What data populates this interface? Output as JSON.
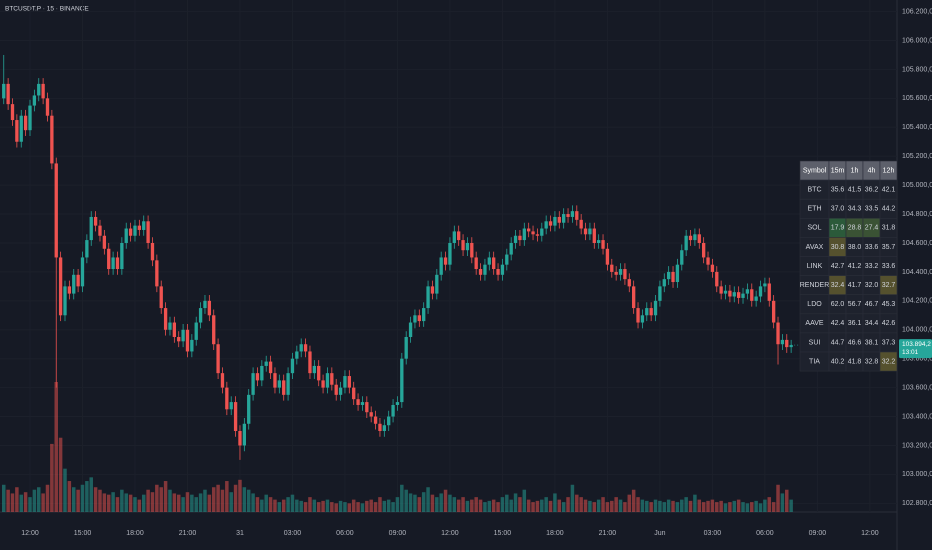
{
  "chart_data": {
    "type": "candlestick",
    "title": "BTCUSDT.P · 15 · BINANCE",
    "up_color": "#26a69a",
    "down_color": "#ef5350",
    "grid": true,
    "xlim": [
      -0.857,
      204.2
    ],
    "xticks": [
      {
        "value": 6,
        "label": "12:00"
      },
      {
        "value": 18,
        "label": "15:00"
      },
      {
        "value": 30,
        "label": "18:00"
      },
      {
        "value": 42,
        "label": "21:00"
      },
      {
        "value": 54,
        "label": "31"
      },
      {
        "value": 66,
        "label": "03:00"
      },
      {
        "value": 78,
        "label": "06:00"
      },
      {
        "value": 90,
        "label": "09:00"
      },
      {
        "value": 102,
        "label": "12:00"
      },
      {
        "value": 114,
        "label": "15:00"
      },
      {
        "value": 126,
        "label": "18:00"
      },
      {
        "value": 138,
        "label": "21:00"
      },
      {
        "value": 150,
        "label": "Jun"
      },
      {
        "value": 162,
        "label": "03:00"
      },
      {
        "value": 174,
        "label": "06:00"
      },
      {
        "value": 186,
        "label": "09:00"
      },
      {
        "value": 198,
        "label": "12:00"
      }
    ],
    "ylim": [
      102740,
      106280
    ],
    "yticks": [
      {
        "value": 106200,
        "label": "106.200,0"
      },
      {
        "value": 106000,
        "label": "106.000,0"
      },
      {
        "value": 105800,
        "label": "105.800,0"
      },
      {
        "value": 105600,
        "label": "105.600,0"
      },
      {
        "value": 105400,
        "label": "105.400,0"
      },
      {
        "value": 105200,
        "label": "105.200,0"
      },
      {
        "value": 105000,
        "label": "105.000,0"
      },
      {
        "value": 104800,
        "label": "104.800,0"
      },
      {
        "value": 104600,
        "label": "104.600,0"
      },
      {
        "value": 104400,
        "label": "104.400,0"
      },
      {
        "value": 104200,
        "label": "104.200,0"
      },
      {
        "value": 104000,
        "label": "104.000,0"
      },
      {
        "value": 103800,
        "label": "103.800,0"
      },
      {
        "value": 103600,
        "label": "103.600,0"
      },
      {
        "value": 103400,
        "label": "103.400,0"
      },
      {
        "value": 103200,
        "label": "103.200,0"
      },
      {
        "value": 103000,
        "label": "103.000,0"
      },
      {
        "value": 102800,
        "label": "102.800,0"
      }
    ],
    "open": [
      105600,
      105700,
      105560,
      105450,
      105300,
      105480,
      105380,
      105550,
      105620,
      105700,
      105600,
      105480,
      105150,
      104500,
      104100,
      104300,
      104250,
      104380,
      104300,
      104500,
      104620,
      104780,
      104720,
      104650,
      104560,
      104420,
      104500,
      104420,
      104600,
      104700,
      104650,
      104720,
      104690,
      104750,
      104600,
      104480,
      104300,
      104150,
      104000,
      104050,
      103950,
      103920,
      104000,
      103850,
      103930,
      104050,
      104150,
      104200,
      104100,
      103900,
      103700,
      103600,
      103450,
      103500,
      103300,
      103200,
      103350,
      103550,
      103700,
      103650,
      103750,
      103780,
      103700,
      103600,
      103650,
      103550,
      103700,
      103800,
      103850,
      103900,
      103850,
      103700,
      103750,
      103650,
      103600,
      103700,
      103620,
      103550,
      103600,
      103680,
      103600,
      103520,
      103480,
      103500,
      103430,
      103400,
      103350,
      103300,
      103340,
      103400,
      103480,
      103500,
      103800,
      103950,
      104050,
      104100,
      104060,
      104150,
      104300,
      104250,
      104380,
      104500,
      104450,
      104600,
      104680,
      104620,
      104550,
      104600,
      104500,
      104420,
      104380,
      104450,
      104500,
      104420,
      104380,
      104450,
      104520,
      104600,
      104650,
      104620,
      104700,
      104680,
      104660,
      104650,
      104700,
      104750,
      104720,
      104780,
      104740,
      104800,
      104780,
      104820,
      104760,
      104700,
      104660,
      104700,
      104600,
      104620,
      104560,
      104450,
      104400,
      104380,
      104420,
      104350,
      104300,
      104150,
      104050,
      104100,
      104150,
      104100,
      104200,
      104300,
      104350,
      104400,
      104330,
      104450,
      104550,
      104650,
      104620,
      104660,
      104600,
      104500,
      104450,
      104400,
      104300,
      104250,
      104270,
      104230,
      104260,
      104220,
      104250,
      104280,
      104200,
      104230,
      104300,
      104320,
      104200,
      104050,
      103900,
      103930,
      103880
    ],
    "high": [
      105900,
      105740,
      105600,
      105490,
      105520,
      105520,
      105590,
      105660,
      105740,
      105740,
      105640,
      105520,
      105190,
      104540,
      104340,
      104340,
      104420,
      104420,
      104540,
      104660,
      104820,
      104820,
      104760,
      104690,
      104600,
      104540,
      104540,
      104640,
      104740,
      104740,
      104760,
      104760,
      104790,
      104790,
      104640,
      104520,
      104340,
      104190,
      104090,
      104090,
      103990,
      104040,
      104040,
      103970,
      104090,
      104190,
      104240,
      104240,
      104140,
      103940,
      103740,
      103640,
      103540,
      103540,
      103340,
      103390,
      103590,
      103740,
      103740,
      103790,
      103820,
      103820,
      103740,
      103690,
      103690,
      103740,
      103840,
      103890,
      103940,
      103940,
      103890,
      103790,
      103790,
      103690,
      103740,
      103740,
      103660,
      103640,
      103720,
      103720,
      103640,
      103560,
      103540,
      103540,
      103470,
      103440,
      103390,
      103380,
      103440,
      103520,
      103540,
      103840,
      103990,
      104090,
      104140,
      104140,
      104190,
      104340,
      104340,
      104420,
      104540,
      104540,
      104640,
      104720,
      104720,
      104660,
      104640,
      104640,
      104540,
      104460,
      104490,
      104540,
      104540,
      104460,
      104490,
      104560,
      104640,
      104690,
      104690,
      104740,
      104740,
      104720,
      104700,
      104740,
      104790,
      104790,
      104820,
      104820,
      104840,
      104840,
      104860,
      104860,
      104800,
      104740,
      104740,
      104740,
      104660,
      104660,
      104600,
      104490,
      104440,
      104460,
      104460,
      104390,
      104340,
      104190,
      104140,
      104190,
      104190,
      104240,
      104340,
      104390,
      104440,
      104440,
      104490,
      104590,
      104690,
      104690,
      104700,
      104700,
      104640,
      104540,
      104490,
      104440,
      104340,
      104310,
      104310,
      104300,
      104300,
      104290,
      104320,
      104320,
      104270,
      104340,
      104360,
      104360,
      104240,
      104090,
      103970,
      103970,
      103930
    ],
    "low": [
      105560,
      105520,
      105410,
      105260,
      105260,
      105340,
      105340,
      105510,
      105580,
      105560,
      105440,
      105110,
      103600,
      104060,
      104060,
      104210,
      104210,
      104260,
      104260,
      104460,
      104580,
      104680,
      104610,
      104520,
      104380,
      104380,
      104380,
      104380,
      104560,
      104610,
      104610,
      104650,
      104650,
      104560,
      104440,
      104260,
      104110,
      103960,
      103960,
      103910,
      103880,
      103880,
      103810,
      103810,
      103890,
      104010,
      104110,
      104060,
      103860,
      103660,
      103560,
      103410,
      103410,
      103260,
      103100,
      103160,
      103310,
      103510,
      103610,
      103610,
      103710,
      103660,
      103560,
      103560,
      103510,
      103510,
      103660,
      103760,
      103810,
      103810,
      103660,
      103660,
      103610,
      103560,
      103560,
      103580,
      103510,
      103510,
      103560,
      103560,
      103480,
      103440,
      103440,
      103390,
      103360,
      103310,
      103260,
      103260,
      103300,
      103360,
      103440,
      103460,
      103760,
      103910,
      104010,
      104020,
      104020,
      104110,
      104210,
      104210,
      104340,
      104410,
      104410,
      104560,
      104580,
      104510,
      104510,
      104460,
      104380,
      104340,
      104340,
      104410,
      104380,
      104340,
      104340,
      104410,
      104480,
      104560,
      104580,
      104580,
      104640,
      104620,
      104610,
      104610,
      104660,
      104680,
      104680,
      104700,
      104700,
      104740,
      104740,
      104720,
      104660,
      104620,
      104620,
      104560,
      104560,
      104520,
      104410,
      104360,
      104340,
      104340,
      104310,
      104260,
      104110,
      104010,
      104010,
      104060,
      104060,
      104060,
      104160,
      104260,
      104310,
      104290,
      104290,
      104410,
      104510,
      104580,
      104580,
      104560,
      104460,
      104410,
      104360,
      104260,
      104210,
      104210,
      104190,
      104190,
      104180,
      104180,
      104210,
      104160,
      104160,
      104190,
      104260,
      104160,
      104010,
      103760,
      103860,
      103840,
      103840
    ],
    "close": [
      105700,
      105560,
      105450,
      105300,
      105480,
      105380,
      105550,
      105620,
      105700,
      105600,
      105480,
      105150,
      104500,
      104100,
      104300,
      104250,
      104380,
      104300,
      104500,
      104620,
      104780,
      104720,
      104650,
      104560,
      104420,
      104500,
      104420,
      104600,
      104700,
      104650,
      104720,
      104690,
      104750,
      104600,
      104480,
      104300,
      104150,
      104000,
      104050,
      103950,
      103920,
      104000,
      103850,
      103930,
      104050,
      104150,
      104200,
      104100,
      103900,
      103700,
      103600,
      103450,
      103500,
      103300,
      103200,
      103350,
      103550,
      103700,
      103650,
      103750,
      103780,
      103700,
      103600,
      103650,
      103550,
      103700,
      103800,
      103850,
      103900,
      103850,
      103700,
      103750,
      103650,
      103600,
      103700,
      103620,
      103550,
      103600,
      103680,
      103600,
      103520,
      103480,
      103500,
      103430,
      103400,
      103350,
      103300,
      103340,
      103400,
      103480,
      103500,
      103800,
      103950,
      104050,
      104100,
      104060,
      104150,
      104300,
      104250,
      104380,
      104500,
      104450,
      104600,
      104680,
      104620,
      104550,
      104600,
      104500,
      104420,
      104380,
      104450,
      104500,
      104420,
      104380,
      104450,
      104520,
      104600,
      104650,
      104620,
      104700,
      104680,
      104660,
      104650,
      104700,
      104750,
      104720,
      104780,
      104740,
      104800,
      104780,
      104820,
      104760,
      104700,
      104660,
      104700,
      104600,
      104620,
      104560,
      104450,
      104400,
      104380,
      104420,
      104350,
      104300,
      104150,
      104050,
      104100,
      104150,
      104100,
      104200,
      104300,
      104350,
      104400,
      104330,
      104450,
      104550,
      104650,
      104620,
      104660,
      104600,
      104500,
      104450,
      104400,
      104300,
      104250,
      104270,
      104230,
      104260,
      104220,
      104250,
      104280,
      104200,
      104230,
      104300,
      104320,
      104200,
      104050,
      103900,
      103930,
      103880,
      103894.2
    ],
    "volume": [
      22,
      18,
      15,
      20,
      14,
      16,
      12,
      18,
      20,
      15,
      22,
      55,
      105,
      60,
      35,
      25,
      20,
      18,
      22,
      25,
      28,
      20,
      18,
      15,
      14,
      16,
      12,
      18,
      15,
      14,
      12,
      10,
      14,
      18,
      16,
      22,
      20,
      25,
      18,
      15,
      14,
      12,
      16,
      14,
      12,
      15,
      18,
      14,
      20,
      22,
      18,
      25,
      16,
      22,
      26,
      20,
      18,
      15,
      12,
      10,
      14,
      12,
      10,
      8,
      10,
      12,
      14,
      10,
      9,
      8,
      12,
      10,
      8,
      9,
      10,
      8,
      7,
      9,
      8,
      7,
      10,
      8,
      7,
      9,
      10,
      8,
      12,
      9,
      10,
      8,
      12,
      22,
      18,
      15,
      14,
      12,
      16,
      20,
      14,
      12,
      15,
      18,
      14,
      12,
      10,
      12,
      9,
      10,
      12,
      10,
      8,
      9,
      10,
      8,
      12,
      14,
      10,
      15,
      12,
      18,
      10,
      8,
      9,
      10,
      12,
      9,
      15,
      10,
      8,
      12,
      22,
      14,
      12,
      10,
      9,
      8,
      10,
      12,
      8,
      9,
      12,
      10,
      8,
      14,
      18,
      12,
      10,
      9,
      8,
      10,
      9,
      8,
      10,
      9,
      8,
      10,
      12,
      9,
      14,
      10,
      8,
      9,
      10,
      8,
      9,
      7,
      8,
      9,
      10,
      8,
      7,
      8,
      9,
      7,
      10,
      12,
      8,
      22,
      15,
      18,
      10
    ],
    "price_label": "103.894,2",
    "countdown": "13:01",
    "table": {
      "header": [
        "Symbol",
        "15m",
        "1h",
        "4h",
        "12h"
      ],
      "rows": [
        [
          "BTC",
          "35.6",
          "41.5",
          "36.2",
          "42.1"
        ],
        [
          "ETH",
          "37.0",
          "34.3",
          "33.5",
          "44.2"
        ],
        [
          "SOL",
          {
            "text": "17.9",
            "color": "#2b5a3a"
          },
          {
            "text": "28.8",
            "color": "#3a5234"
          },
          {
            "text": "27.4",
            "color": "#3a5234"
          },
          "31.8"
        ],
        [
          "AVAX",
          {
            "text": "30.8",
            "color": "#55512e"
          },
          "38.0",
          "33.6",
          "35.7"
        ],
        [
          "LINK",
          "42.7",
          "41.2",
          "33.2",
          "33.6"
        ],
        [
          "RENDER",
          {
            "text": "32.4",
            "color": "#55512e"
          },
          "41.7",
          "32.0",
          {
            "text": "32.7",
            "color": "#55512e"
          }
        ],
        [
          "LDO",
          "62.0",
          "56.7",
          "46.7",
          "45.3"
        ],
        [
          "AAVE",
          "42.4",
          "36.1",
          "34.4",
          "42.6"
        ],
        [
          "SUI",
          "44.7",
          "46.6",
          "38.1",
          "37.3"
        ],
        [
          "TIA",
          "40.2",
          "41.8",
          "32.8",
          {
            "text": "32.2",
            "color": "#55512e"
          }
        ]
      ]
    }
  }
}
